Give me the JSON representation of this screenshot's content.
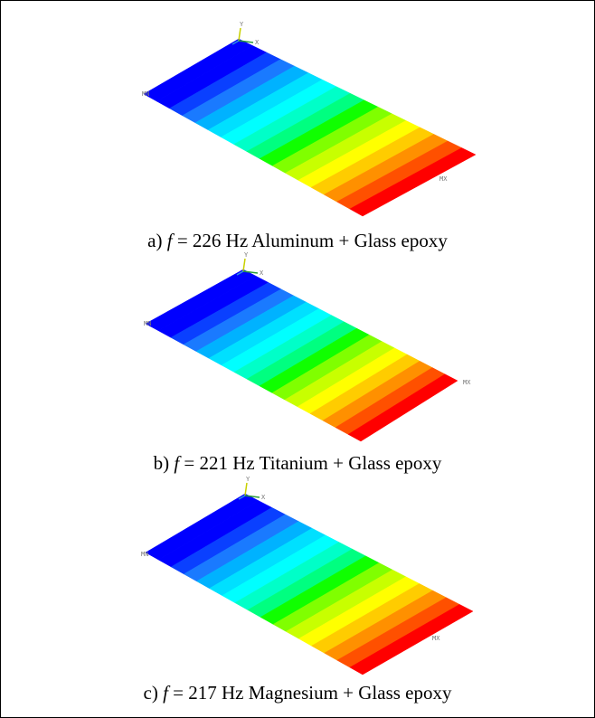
{
  "figures": [
    {
      "label": "a)",
      "variable": "f",
      "text": "= 226 Hz Aluminum + Glass epoxy",
      "min_label": "MN",
      "max_label": "MX",
      "axis_x": "X",
      "axis_y": "Y"
    },
    {
      "label": "b)",
      "variable": "f",
      "text": "= 221 Hz Titanium + Glass epoxy",
      "min_label": "MN",
      "max_label": "MX",
      "axis_x": "X",
      "axis_y": "Y"
    },
    {
      "label": "c)",
      "variable": "f",
      "text": "= 217 Hz Magnesium + Glass epoxy",
      "min_label": "MN",
      "max_label": "MX",
      "axis_x": "X",
      "axis_y": "Y"
    }
  ]
}
